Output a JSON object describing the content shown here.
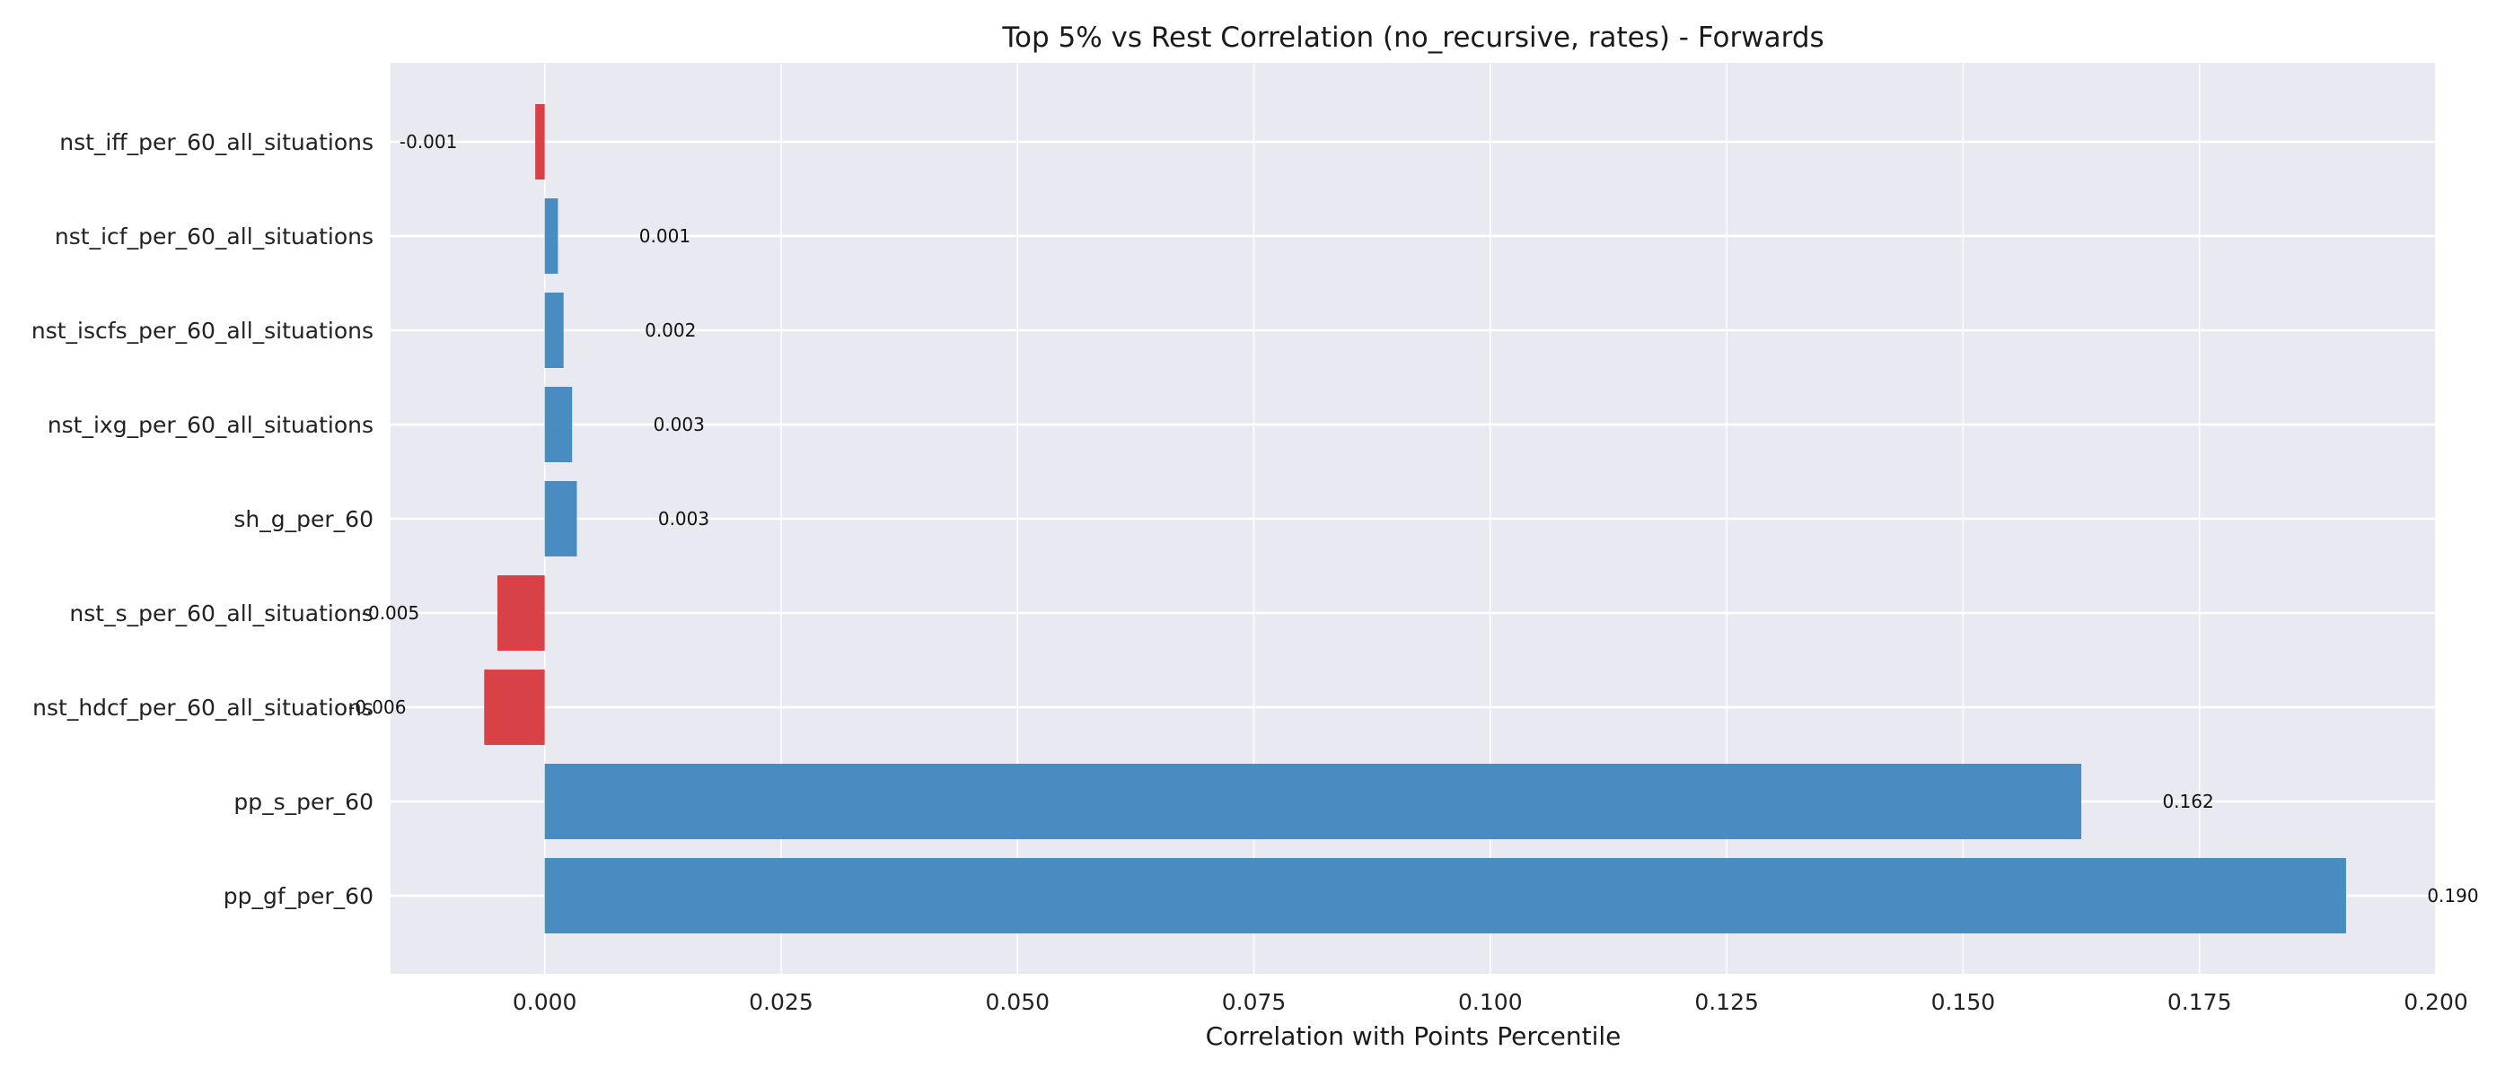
{
  "chart_data": {
    "type": "bar",
    "orientation": "horizontal",
    "title": "Top 5% vs Rest Correlation (no_recursive, rates) - Forwards",
    "xlabel": "Correlation with Points Percentile",
    "ylabel": "",
    "xlim": [
      -0.0163,
      0.2
    ],
    "xticks": [
      0.0,
      0.025,
      0.05,
      0.075,
      0.1,
      0.125,
      0.15,
      0.175,
      0.2
    ],
    "xtick_labels": [
      "0.000",
      "0.025",
      "0.050",
      "0.075",
      "0.100",
      "0.125",
      "0.150",
      "0.175",
      "0.200"
    ],
    "categories": [
      "nst_iff_per_60_all_situations",
      "nst_icf_per_60_all_situations",
      "nst_iscfs_per_60_all_situations",
      "nst_ixg_per_60_all_situations",
      "sh_g_per_60",
      "nst_s_per_60_all_situations",
      "nst_hdcf_per_60_all_situations",
      "pp_s_per_60",
      "pp_gf_per_60"
    ],
    "values": [
      -0.001,
      0.0014,
      0.002,
      0.0029,
      0.0034,
      -0.005,
      -0.0064,
      0.1625,
      0.1905
    ],
    "value_labels": [
      "-0.001",
      "0.001",
      "0.002",
      "0.003",
      "0.003",
      "-0.005",
      "-0.006",
      "0.162",
      "0.190"
    ],
    "colors": {
      "positive": "#3f87bf",
      "negative": "#d7393d",
      "background": "#e9e9f1",
      "grid": "#ffffff"
    },
    "grid": true,
    "legend": "none"
  }
}
